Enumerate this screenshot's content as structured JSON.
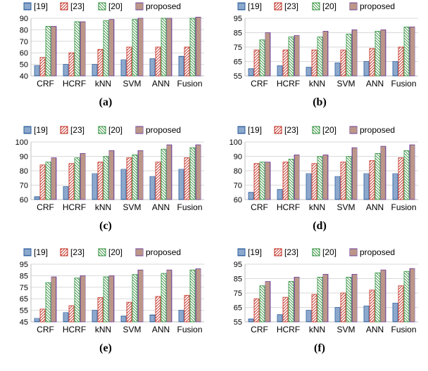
{
  "figure": {
    "panel_labels": [
      "(a)",
      "(b)",
      "(c)",
      "(d)",
      "(e)",
      "(f)"
    ]
  },
  "legend_styles": {
    "[19]": {
      "color": "#2e5f9e",
      "fill": "#d8e4f2",
      "pattern": "horizontal-lines"
    },
    "[23]": {
      "color": "#c0281c",
      "fill": "#ffffff",
      "pattern": "diagonal-up"
    },
    "[20]": {
      "color": "#2f8f3a",
      "fill": "#ffffff",
      "pattern": "diagonal-down"
    },
    "proposed": {
      "color": "#6a3d9a",
      "fill": "#ffe07a",
      "pattern": "vertical-lines"
    }
  },
  "chart_data": [
    {
      "panel": "(a)",
      "type": "bar",
      "categories": [
        "CRF",
        "HCRF",
        "kNN",
        "SVM",
        "ANN",
        "Fusion"
      ],
      "ylim": [
        40,
        90
      ],
      "yticks": [
        40,
        50,
        60,
        70,
        80,
        90
      ],
      "series": [
        {
          "name": "[19]",
          "values": [
            49,
            50,
            50,
            54,
            55,
            57
          ]
        },
        {
          "name": "[23]",
          "values": [
            56,
            60,
            63,
            65,
            65,
            65
          ]
        },
        {
          "name": "[20]",
          "values": [
            83,
            87,
            88,
            89,
            90,
            90
          ]
        },
        {
          "name": "proposed",
          "values": [
            83,
            87,
            89,
            90,
            90,
            91
          ]
        }
      ]
    },
    {
      "panel": "(b)",
      "type": "bar",
      "categories": [
        "CRF",
        "HCRF",
        "kNN",
        "SVM",
        "ANN",
        "Fusion"
      ],
      "ylim": [
        55,
        95
      ],
      "yticks": [
        55,
        65,
        75,
        85,
        95
      ],
      "series": [
        {
          "name": "[19]",
          "values": [
            60,
            62,
            61,
            64,
            65,
            65
          ]
        },
        {
          "name": "[23]",
          "values": [
            73,
            73,
            73,
            73,
            74,
            75
          ]
        },
        {
          "name": "[20]",
          "values": [
            80,
            82,
            82,
            84,
            86,
            89
          ]
        },
        {
          "name": "proposed",
          "values": [
            85,
            83,
            86,
            87,
            87,
            89
          ]
        }
      ]
    },
    {
      "panel": "(c)",
      "type": "bar",
      "categories": [
        "CRF",
        "HCRF",
        "kNN",
        "SVM",
        "ANN",
        "Fusion"
      ],
      "ylim": [
        60,
        100
      ],
      "yticks": [
        60,
        70,
        80,
        90,
        100
      ],
      "series": [
        {
          "name": "[19]",
          "values": [
            62,
            69,
            78,
            81,
            76,
            81
          ]
        },
        {
          "name": "[23]",
          "values": [
            84,
            85,
            86,
            89,
            86,
            89
          ]
        },
        {
          "name": "[20]",
          "values": [
            86,
            89,
            90,
            91,
            95,
            96
          ]
        },
        {
          "name": "proposed",
          "values": [
            89,
            92,
            94,
            94,
            98,
            98
          ]
        }
      ]
    },
    {
      "panel": "(d)",
      "type": "bar",
      "categories": [
        "CRF",
        "HCRF",
        "kNN",
        "SVM",
        "ANN",
        "Fusion"
      ],
      "ylim": [
        60,
        100
      ],
      "yticks": [
        60,
        70,
        80,
        90,
        100
      ],
      "series": [
        {
          "name": "[19]",
          "values": [
            65,
            67,
            78,
            76,
            78,
            78
          ]
        },
        {
          "name": "[23]",
          "values": [
            85,
            86,
            85,
            86,
            87,
            89
          ]
        },
        {
          "name": "[20]",
          "values": [
            86,
            88,
            90,
            90,
            92,
            94
          ]
        },
        {
          "name": "proposed",
          "values": [
            86,
            91,
            91,
            96,
            97,
            98
          ]
        }
      ]
    },
    {
      "panel": "(e)",
      "type": "bar",
      "categories": [
        "CRF",
        "HCRF",
        "kNN",
        "SVM",
        "ANN",
        "Fusion"
      ],
      "ylim": [
        45,
        95
      ],
      "yticks": [
        45,
        55,
        65,
        75,
        85,
        95
      ],
      "series": [
        {
          "name": "[19]",
          "values": [
            48,
            53,
            55,
            50,
            51,
            55
          ]
        },
        {
          "name": "[23]",
          "values": [
            56,
            59,
            66,
            62,
            67,
            68
          ]
        },
        {
          "name": "[20]",
          "values": [
            79,
            83,
            84,
            86,
            87,
            90
          ]
        },
        {
          "name": "proposed",
          "values": [
            84,
            85,
            85,
            90,
            90,
            91
          ]
        }
      ]
    },
    {
      "panel": "(f)",
      "type": "bar",
      "categories": [
        "CRF",
        "HCRF",
        "kNN",
        "SVM",
        "ANN",
        "Fusion"
      ],
      "ylim": [
        55,
        95
      ],
      "yticks": [
        55,
        65,
        75,
        85,
        95
      ],
      "series": [
        {
          "name": "[19]",
          "values": [
            57,
            60,
            63,
            65,
            66,
            68
          ]
        },
        {
          "name": "[23]",
          "values": [
            71,
            72,
            74,
            75,
            77,
            80
          ]
        },
        {
          "name": "[20]",
          "values": [
            80,
            83,
            86,
            86,
            89,
            90
          ]
        },
        {
          "name": "proposed",
          "values": [
            83,
            86,
            88,
            88,
            91,
            92
          ]
        }
      ]
    }
  ]
}
